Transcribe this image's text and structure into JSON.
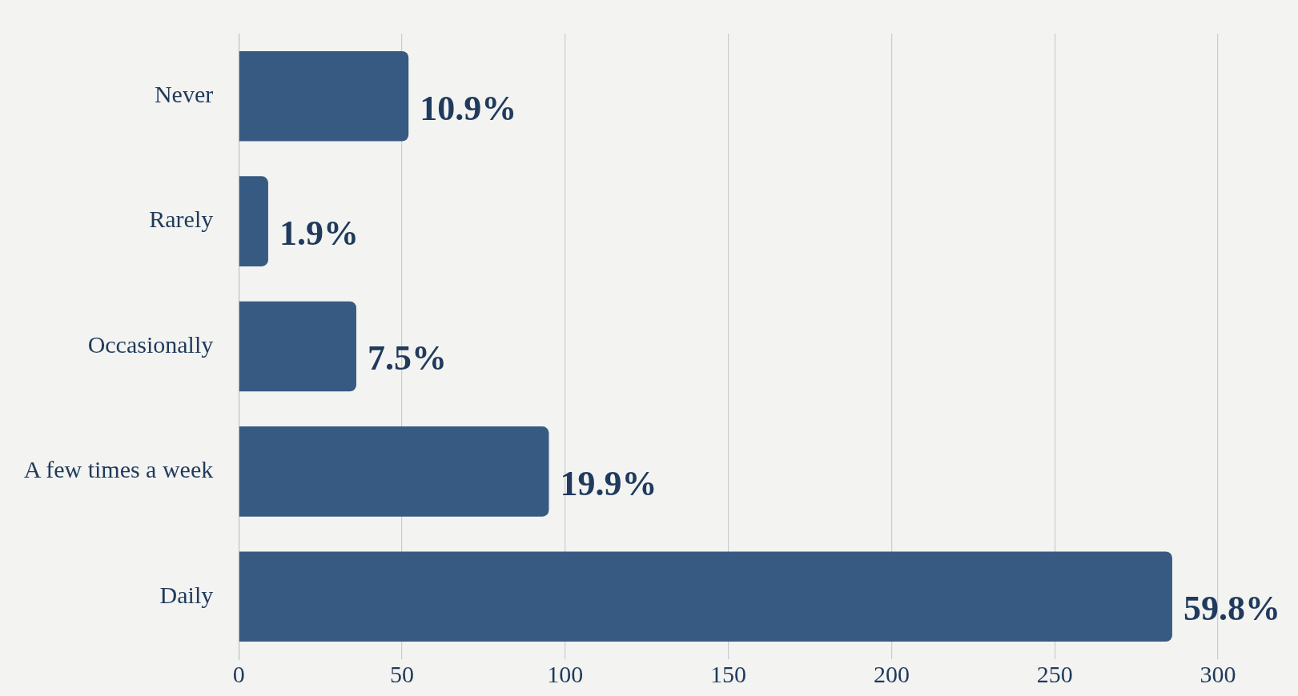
{
  "chart_data": {
    "type": "bar",
    "orientation": "horizontal",
    "categories": [
      "Never",
      "Rarely",
      "Occasionally",
      "A few times a week",
      "Daily"
    ],
    "values": [
      52,
      9,
      36,
      95,
      286
    ],
    "color": "#375a82",
    "annotations": [
      {
        "text": "10.9%",
        "x": 52,
        "y": "Never"
      },
      {
        "text": "1.9%",
        "x": 9,
        "y": "Rarely"
      },
      {
        "text": "7.5%",
        "x": 36,
        "y": "Occasionally"
      },
      {
        "text": "19.9%",
        "x": 95,
        "y": "A few times a week"
      },
      {
        "text": "59.8%",
        "x": 286,
        "y": "Daily"
      }
    ],
    "xlim": [
      0,
      300
    ],
    "xticks": [
      0,
      50,
      100,
      150,
      200,
      250,
      300
    ],
    "grid": "x",
    "legend": false
  }
}
